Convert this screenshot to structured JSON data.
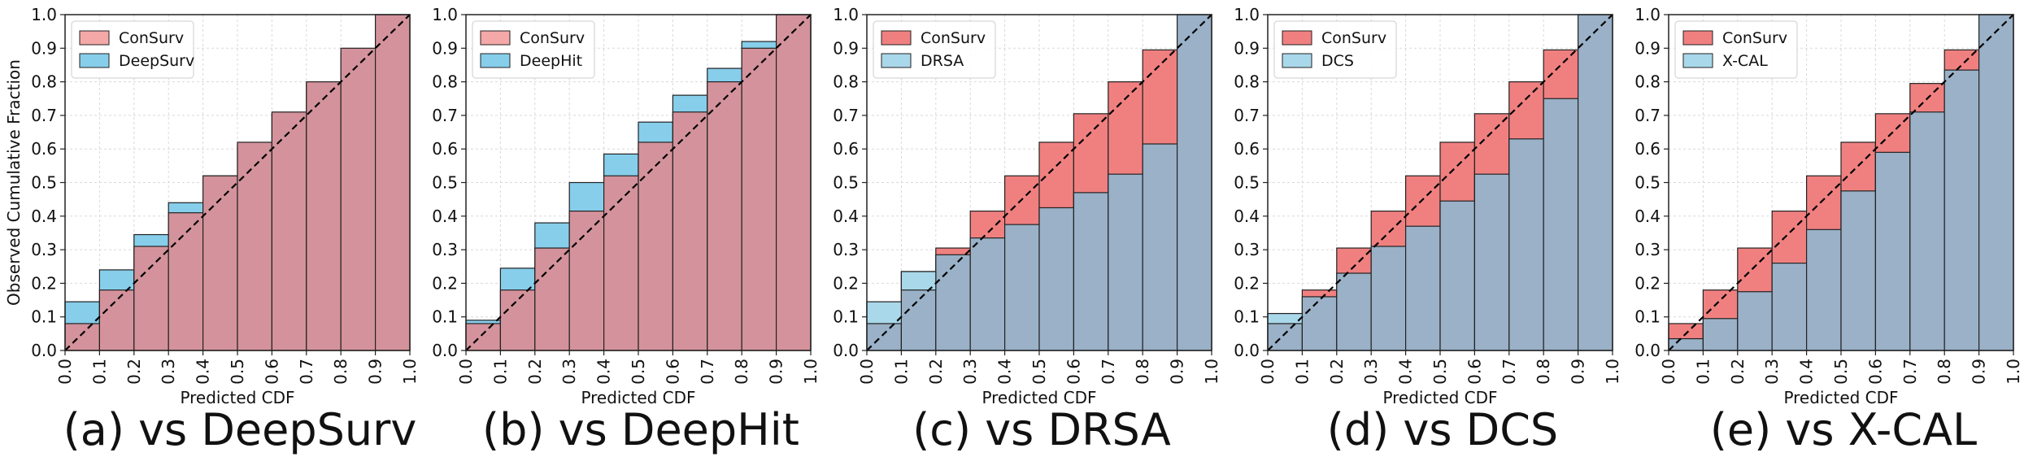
{
  "figure": {
    "ylabel": "Observed Cumulative Fraction",
    "xlabel": "Predicted CDF"
  },
  "style": {
    "consurv_color": "#f08080",
    "baseline_color": "#9ab1c7",
    "deepsurv_color": "#87ceeb",
    "consurv_over_light": "#d4939c",
    "diagonal_color": "#000000"
  },
  "chart_data": [
    {
      "type": "bar",
      "caption": "(a) vs DeepSurv",
      "x": [
        0.0,
        0.1,
        0.2,
        0.3,
        0.4,
        0.5,
        0.6,
        0.7,
        0.8,
        0.9
      ],
      "xlim": [
        0,
        1
      ],
      "ylim": [
        0,
        1
      ],
      "xticks": [
        "0.0",
        "0.1",
        "0.2",
        "0.3",
        "0.4",
        "0.5",
        "0.6",
        "0.7",
        "0.8",
        "0.9",
        "1.0"
      ],
      "yticks": [
        "0.0",
        "0.1",
        "0.2",
        "0.3",
        "0.4",
        "0.5",
        "0.6",
        "0.7",
        "0.8",
        "0.9",
        "1.0"
      ],
      "xlabel": "Predicted CDF",
      "ylabel": "Observed Cumulative Fraction",
      "legend_position": "top-left",
      "grid": true,
      "baseline_on_top": false,
      "series": [
        {
          "name": "ConSurv",
          "values": [
            0.08,
            0.18,
            0.31,
            0.41,
            0.52,
            0.62,
            0.71,
            0.8,
            0.9,
            1.0
          ]
        },
        {
          "name": "DeepSurv",
          "values": [
            0.145,
            0.24,
            0.345,
            0.44,
            0.52,
            0.61,
            0.705,
            0.795,
            0.885,
            1.0
          ]
        }
      ]
    },
    {
      "type": "bar",
      "caption": "(b) vs DeepHit",
      "x": [
        0.0,
        0.1,
        0.2,
        0.3,
        0.4,
        0.5,
        0.6,
        0.7,
        0.8,
        0.9
      ],
      "xlim": [
        0,
        1
      ],
      "ylim": [
        0,
        1
      ],
      "xticks": [
        "0.0",
        "0.1",
        "0.2",
        "0.3",
        "0.4",
        "0.5",
        "0.6",
        "0.7",
        "0.8",
        "0.9",
        "1.0"
      ],
      "yticks": [
        "0.0",
        "0.1",
        "0.2",
        "0.3",
        "0.4",
        "0.5",
        "0.6",
        "0.7",
        "0.8",
        "0.9",
        "1.0"
      ],
      "xlabel": "Predicted CDF",
      "legend_position": "top-left",
      "grid": true,
      "baseline_on_top": false,
      "series": [
        {
          "name": "ConSurv",
          "values": [
            0.08,
            0.18,
            0.305,
            0.415,
            0.52,
            0.62,
            0.71,
            0.8,
            0.9,
            1.0
          ]
        },
        {
          "name": "DeepHit",
          "values": [
            0.09,
            0.245,
            0.38,
            0.5,
            0.585,
            0.68,
            0.76,
            0.84,
            0.92,
            1.0
          ]
        }
      ]
    },
    {
      "type": "bar",
      "caption": "(c) vs DRSA",
      "x": [
        0.0,
        0.1,
        0.2,
        0.3,
        0.4,
        0.5,
        0.6,
        0.7,
        0.8,
        0.9
      ],
      "xlim": [
        0,
        1
      ],
      "ylim": [
        0,
        1
      ],
      "xticks": [
        "0.0",
        "0.1",
        "0.2",
        "0.3",
        "0.4",
        "0.5",
        "0.6",
        "0.7",
        "0.8",
        "0.9",
        "1.0"
      ],
      "yticks": [
        "0.0",
        "0.1",
        "0.2",
        "0.3",
        "0.4",
        "0.5",
        "0.6",
        "0.7",
        "0.8",
        "0.9",
        "1.0"
      ],
      "xlabel": "Predicted CDF",
      "legend_position": "top-left",
      "grid": true,
      "baseline_on_top": true,
      "series": [
        {
          "name": "ConSurv",
          "values": [
            0.08,
            0.18,
            0.305,
            0.415,
            0.52,
            0.62,
            0.705,
            0.8,
            0.895,
            1.0
          ]
        },
        {
          "name": "DRSA",
          "values": [
            0.145,
            0.235,
            0.285,
            0.335,
            0.375,
            0.425,
            0.47,
            0.525,
            0.615,
            1.0
          ]
        }
      ]
    },
    {
      "type": "bar",
      "caption": "(d) vs DCS",
      "x": [
        0.0,
        0.1,
        0.2,
        0.3,
        0.4,
        0.5,
        0.6,
        0.7,
        0.8,
        0.9
      ],
      "xlim": [
        0,
        1
      ],
      "ylim": [
        0,
        1
      ],
      "xticks": [
        "0.0",
        "0.1",
        "0.2",
        "0.3",
        "0.4",
        "0.5",
        "0.6",
        "0.7",
        "0.8",
        "0.9",
        "1.0"
      ],
      "yticks": [
        "0.0",
        "0.1",
        "0.2",
        "0.3",
        "0.4",
        "0.5",
        "0.6",
        "0.7",
        "0.8",
        "0.9",
        "1.0"
      ],
      "xlabel": "Predicted CDF",
      "legend_position": "top-left",
      "grid": true,
      "baseline_on_top": true,
      "series": [
        {
          "name": "ConSurv",
          "values": [
            0.08,
            0.18,
            0.305,
            0.415,
            0.52,
            0.62,
            0.705,
            0.8,
            0.895,
            1.0
          ]
        },
        {
          "name": "DCS",
          "values": [
            0.11,
            0.16,
            0.23,
            0.31,
            0.37,
            0.445,
            0.525,
            0.63,
            0.75,
            1.0
          ]
        }
      ]
    },
    {
      "type": "bar",
      "caption": "(e) vs X-CAL",
      "x": [
        0.0,
        0.1,
        0.2,
        0.3,
        0.4,
        0.5,
        0.6,
        0.7,
        0.8,
        0.9
      ],
      "xlim": [
        0,
        1
      ],
      "ylim": [
        0,
        1
      ],
      "xticks": [
        "0.0",
        "0.1",
        "0.2",
        "0.3",
        "0.4",
        "0.5",
        "0.6",
        "0.7",
        "0.8",
        "0.9",
        "1.0"
      ],
      "yticks": [
        "0.0",
        "0.1",
        "0.2",
        "0.3",
        "0.4",
        "0.5",
        "0.6",
        "0.7",
        "0.8",
        "0.9",
        "1.0"
      ],
      "xlabel": "Predicted CDF",
      "legend_position": "top-left",
      "grid": true,
      "baseline_on_top": true,
      "series": [
        {
          "name": "ConSurv",
          "values": [
            0.08,
            0.18,
            0.305,
            0.415,
            0.52,
            0.62,
            0.705,
            0.795,
            0.895,
            1.0
          ]
        },
        {
          "name": "X-CAL",
          "values": [
            0.035,
            0.095,
            0.175,
            0.26,
            0.36,
            0.475,
            0.59,
            0.71,
            0.835,
            1.0
          ]
        }
      ]
    }
  ]
}
